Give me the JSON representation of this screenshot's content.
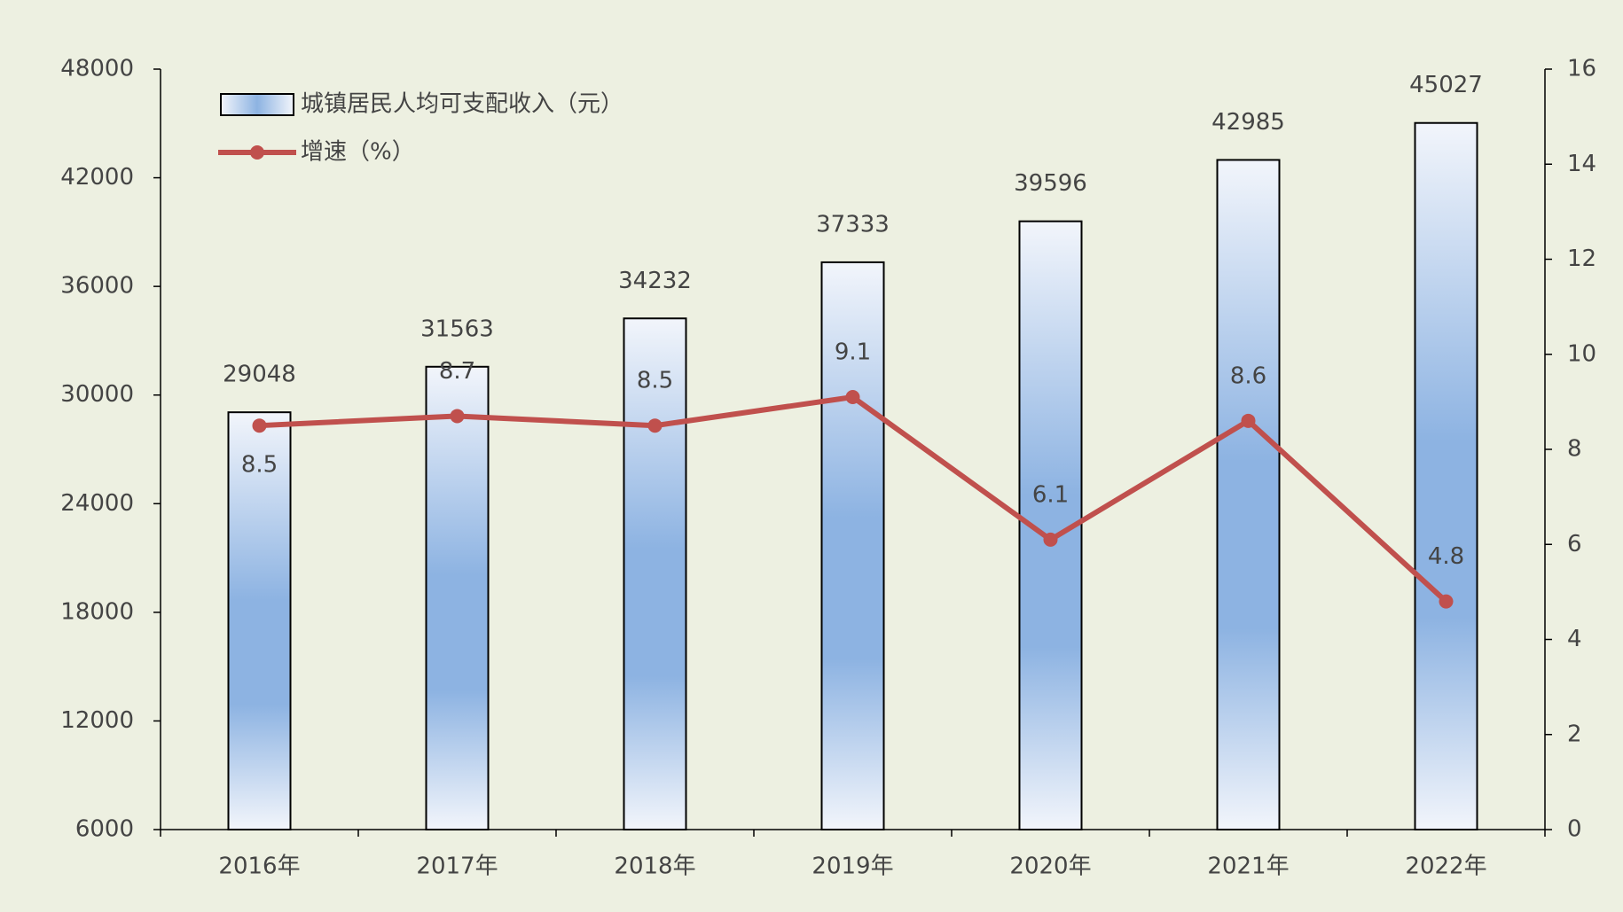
{
  "chart_data": {
    "type": "bar-line",
    "categories": [
      "2016年",
      "2017年",
      "2018年",
      "2019年",
      "2020年",
      "2021年",
      "2022年"
    ],
    "series": [
      {
        "name": "城镇居民人均可支配收入（元）",
        "type": "bar",
        "color": "#8db3e2",
        "values": [
          29048,
          31563,
          34232,
          37333,
          39596,
          42985,
          45027
        ]
      },
      {
        "name": "增速（%）",
        "type": "line",
        "axis": "y2",
        "color": "#c0504d",
        "values": [
          8.5,
          8.7,
          8.5,
          9.1,
          6.1,
          8.6,
          4.8
        ]
      }
    ],
    "ylim": [
      6000,
      48000
    ],
    "yticks": [
      6000,
      12000,
      18000,
      24000,
      30000,
      36000,
      42000,
      48000
    ],
    "y2lim": [
      0,
      16
    ],
    "y2ticks": [
      0,
      2,
      4,
      6,
      8,
      10,
      12,
      14,
      16
    ],
    "grid": false,
    "legend": "top-left"
  }
}
